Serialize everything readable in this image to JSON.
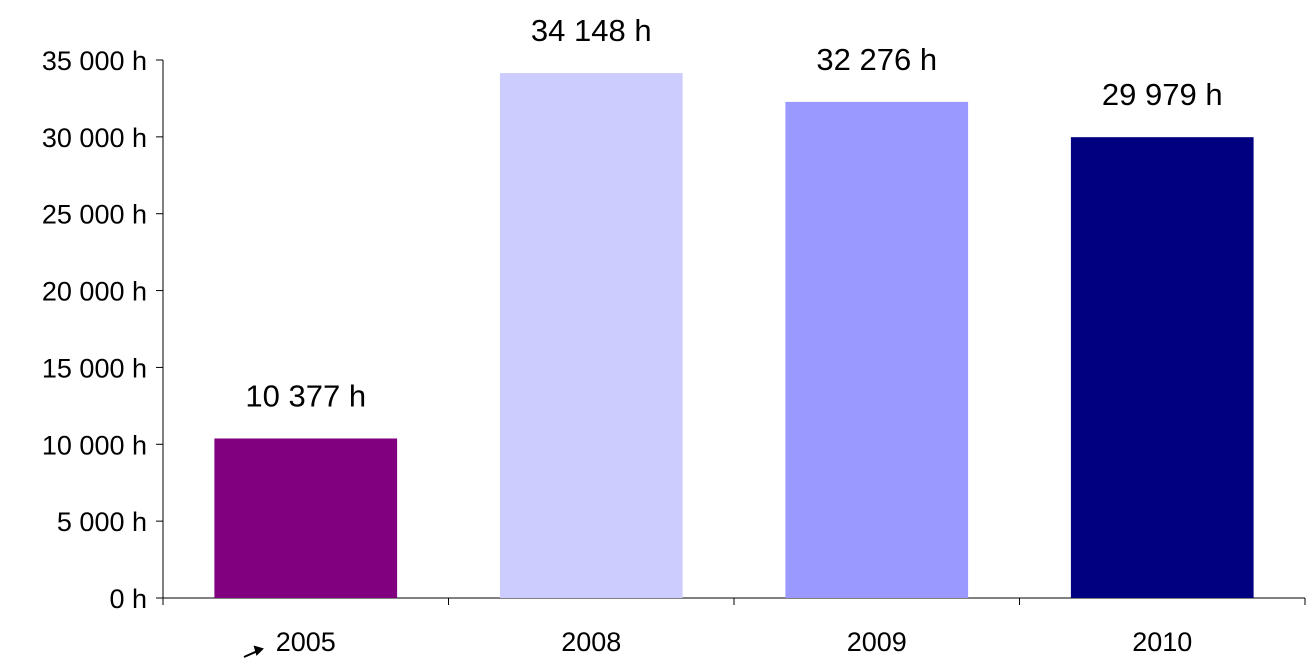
{
  "chart_data": {
    "type": "bar",
    "title": "",
    "xlabel": "",
    "ylabel": "",
    "categories": [
      "2005",
      "2008",
      "2009",
      "2010"
    ],
    "values": [
      10377,
      34148,
      32276,
      29979
    ],
    "value_labels": [
      "10 377 h",
      "34 148 h",
      "32 276 h",
      "29 979 h"
    ],
    "bar_colors": [
      "#800080",
      "#CCCCFF",
      "#9999FF",
      "#000080"
    ],
    "ylim": [
      0,
      35000
    ],
    "yticks": [
      0,
      5000,
      10000,
      15000,
      20000,
      25000,
      30000,
      35000
    ],
    "ytick_labels": [
      "0 h",
      "5 000 h",
      "10 000 h",
      "15 000 h",
      "20 000 h",
      "25 000 h",
      "30 000 h",
      "35 000 h"
    ],
    "grid": false,
    "legend": "none"
  }
}
